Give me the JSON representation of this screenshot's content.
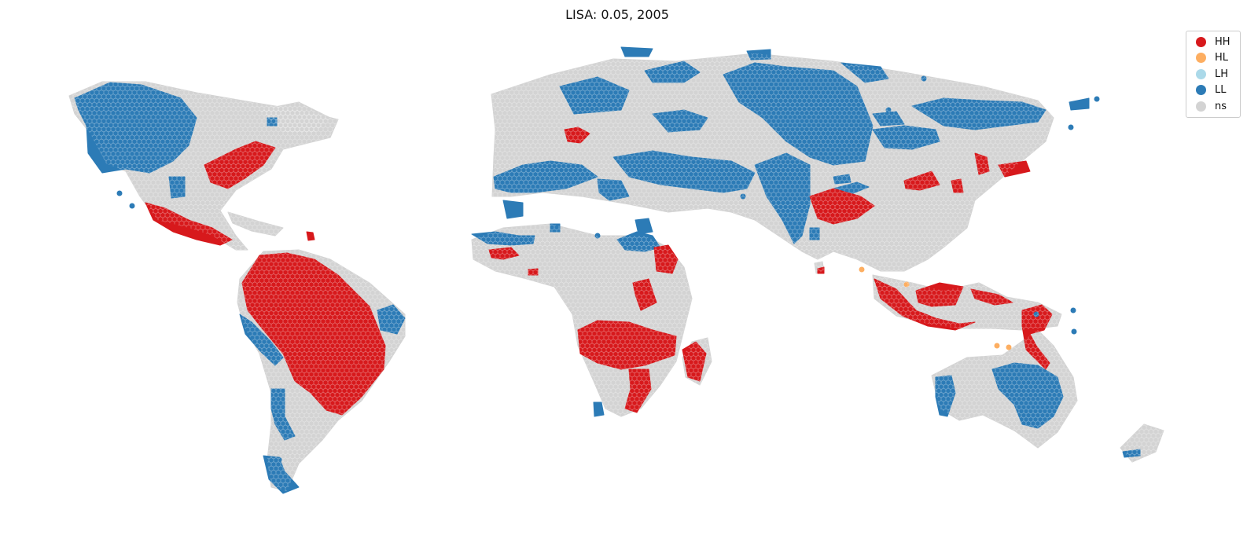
{
  "title": "LISA: 0.05, 2005",
  "legend": [
    {
      "label": "HH",
      "color": "#d7191c"
    },
    {
      "label": "HL",
      "color": "#fdae61"
    },
    {
      "label": "LH",
      "color": "#abd9e9"
    },
    {
      "label": "LL",
      "color": "#2c7bb6"
    },
    {
      "label": "ns",
      "color": "#d3d3d3"
    }
  ],
  "map": {
    "cell_shape": "hexagon",
    "cell_outline_color": "#ffffff",
    "classes": [
      "HH",
      "HL",
      "LH",
      "LL",
      "ns"
    ]
  }
}
